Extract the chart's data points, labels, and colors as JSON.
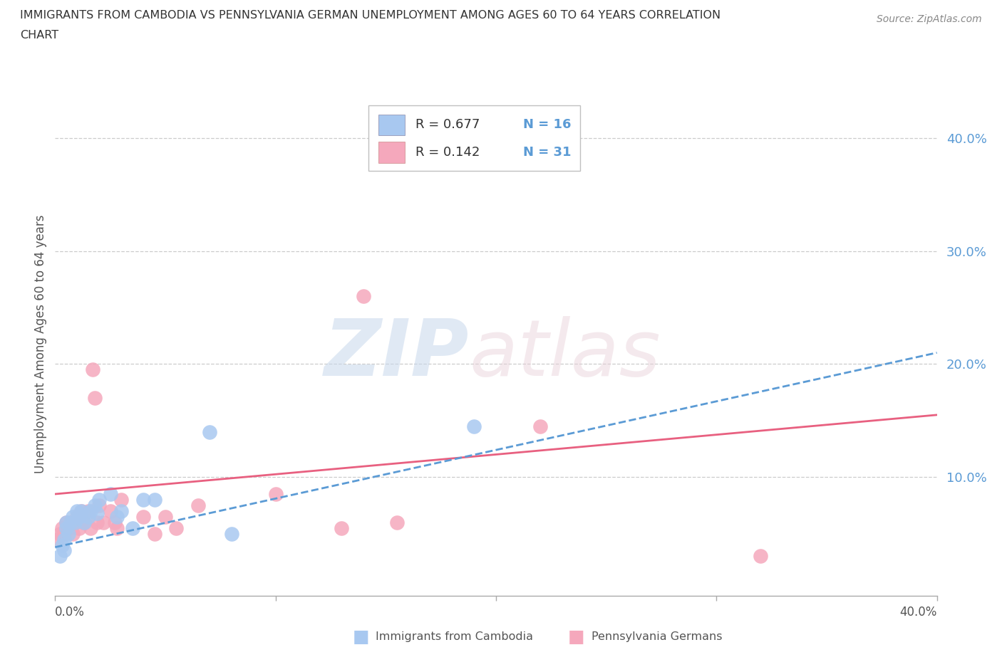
{
  "title_line1": "IMMIGRANTS FROM CAMBODIA VS PENNSYLVANIA GERMAN UNEMPLOYMENT AMONG AGES 60 TO 64 YEARS CORRELATION",
  "title_line2": "CHART",
  "source": "Source: ZipAtlas.com",
  "ylabel": "Unemployment Among Ages 60 to 64 years",
  "ytick_labels": [
    "10.0%",
    "20.0%",
    "30.0%",
    "40.0%"
  ],
  "ytick_positions": [
    0.1,
    0.2,
    0.3,
    0.4
  ],
  "xlim": [
    0,
    0.4
  ],
  "ylim": [
    -0.005,
    0.44
  ],
  "color_cambodia": "#a8c8f0",
  "color_pa_german": "#f5a8bc",
  "color_trendline_cambodia": "#5b9bd5",
  "color_trendline_pa_german": "#e86080",
  "watermark_zip": "ZIP",
  "watermark_atlas": "atlas",
  "cambodia_x": [
    0.002,
    0.003,
    0.004,
    0.004,
    0.005,
    0.005,
    0.006,
    0.007,
    0.008,
    0.009,
    0.01,
    0.011,
    0.012,
    0.013,
    0.015,
    0.016,
    0.018,
    0.019,
    0.02,
    0.025,
    0.028,
    0.03,
    0.035,
    0.04,
    0.045,
    0.07,
    0.08,
    0.19
  ],
  "cambodia_y": [
    0.03,
    0.04,
    0.035,
    0.045,
    0.055,
    0.06,
    0.05,
    0.06,
    0.065,
    0.06,
    0.07,
    0.065,
    0.07,
    0.06,
    0.065,
    0.07,
    0.075,
    0.068,
    0.08,
    0.085,
    0.065,
    0.07,
    0.055,
    0.08,
    0.08,
    0.14,
    0.05,
    0.145
  ],
  "pa_german_x": [
    0.001,
    0.002,
    0.003,
    0.004,
    0.005,
    0.006,
    0.007,
    0.008,
    0.009,
    0.01,
    0.011,
    0.012,
    0.013,
    0.015,
    0.016,
    0.017,
    0.018,
    0.019,
    0.02,
    0.022,
    0.025,
    0.027,
    0.028,
    0.03,
    0.04,
    0.045,
    0.05,
    0.055,
    0.065,
    0.1,
    0.13,
    0.14,
    0.155,
    0.22,
    0.32
  ],
  "pa_german_y": [
    0.045,
    0.05,
    0.055,
    0.05,
    0.06,
    0.055,
    0.06,
    0.05,
    0.06,
    0.065,
    0.055,
    0.07,
    0.06,
    0.07,
    0.055,
    0.195,
    0.17,
    0.06,
    0.075,
    0.06,
    0.07,
    0.06,
    0.055,
    0.08,
    0.065,
    0.05,
    0.065,
    0.055,
    0.075,
    0.085,
    0.055,
    0.26,
    0.06,
    0.145,
    0.03
  ]
}
